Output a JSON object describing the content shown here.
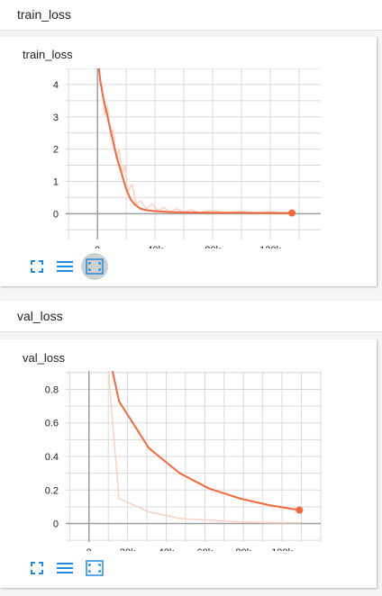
{
  "sections": [
    {
      "header": "train_loss"
    },
    {
      "header": "val_loss"
    }
  ],
  "colors": {
    "accent": "#f4683c",
    "accent_light": "#fbd2c1",
    "icon_blue": "#1e88e5",
    "grid": "#d9d9d9",
    "axis": "#9e9e9e"
  },
  "toolbar_icons": [
    "fullscreen-icon",
    "list-icon",
    "fit-domain-icon"
  ],
  "chart_data": [
    {
      "type": "line",
      "title": "train_loss",
      "xlabel": "",
      "ylabel": "",
      "xlim": [
        -22000,
        155000
      ],
      "ylim": [
        -0.8,
        4.5
      ],
      "xticks": [
        0,
        40000,
        80000,
        120000
      ],
      "xtick_labels": [
        "0",
        "40k",
        "80k",
        "120k"
      ],
      "yticks": [
        0,
        1,
        2,
        3,
        4
      ],
      "ytick_labels": [
        "0",
        "1",
        "2",
        "3",
        "4"
      ],
      "grid": true,
      "series": [
        {
          "style": "smoothed",
          "x": [
            1000,
            2000,
            4000,
            6000,
            8000,
            10000,
            12000,
            14000,
            16000,
            18000,
            20000,
            23000,
            26000,
            30000,
            35000,
            40000,
            50000,
            60000,
            80000,
            100000,
            120000,
            135000
          ],
          "values": [
            4.5,
            4.1,
            3.6,
            3.2,
            2.8,
            2.4,
            2.0,
            1.65,
            1.35,
            1.05,
            0.75,
            0.45,
            0.28,
            0.15,
            0.1,
            0.08,
            0.05,
            0.04,
            0.03,
            0.025,
            0.02,
            0.02
          ]
        },
        {
          "style": "raw",
          "x": [
            1000,
            3000,
            5000,
            7000,
            9000,
            11000,
            13000,
            15000,
            17000,
            19000,
            21000,
            24000,
            27000,
            30000,
            34000,
            38000,
            42000,
            46000,
            50000,
            55000,
            60000,
            65000,
            70000,
            80000,
            90000,
            100000,
            110000,
            120000,
            130000,
            135000
          ],
          "values": [
            4.4,
            3.9,
            3.1,
            3.3,
            2.4,
            2.6,
            1.7,
            2.0,
            1.2,
            1.5,
            0.7,
            0.9,
            0.3,
            0.4,
            0.15,
            0.3,
            0.08,
            0.2,
            0.05,
            0.15,
            0.04,
            0.12,
            0.03,
            0.1,
            0.03,
            0.08,
            0.02,
            0.07,
            0.02,
            0.02
          ]
        }
      ]
    },
    {
      "type": "line",
      "title": "val_loss",
      "xlabel": "",
      "ylabel": "",
      "xlim": [
        -12000,
        120000
      ],
      "ylim": [
        -0.11,
        0.91
      ],
      "xticks": [
        0,
        20000,
        40000,
        60000,
        80000,
        100000
      ],
      "xtick_labels": [
        "0",
        "20k",
        "40k",
        "60k",
        "80k",
        "100k"
      ],
      "yticks": [
        0,
        0.2,
        0.4,
        0.6,
        0.8
      ],
      "ytick_labels": [
        "0",
        "0.2",
        "0.4",
        "0.6",
        "0.8"
      ],
      "grid": true,
      "series": [
        {
          "style": "smoothed",
          "x": [
            12000,
            15500,
            31000,
            47000,
            62000,
            78000,
            93000,
            109000
          ],
          "values": [
            0.92,
            0.73,
            0.45,
            0.3,
            0.21,
            0.15,
            0.11,
            0.08
          ]
        },
        {
          "style": "raw",
          "x": [
            10000,
            15500,
            31000,
            47000,
            62000,
            78000,
            93000,
            109000
          ],
          "values": [
            0.92,
            0.15,
            0.07,
            0.03,
            0.02,
            0.01,
            0.005,
            0.005
          ]
        }
      ]
    }
  ]
}
